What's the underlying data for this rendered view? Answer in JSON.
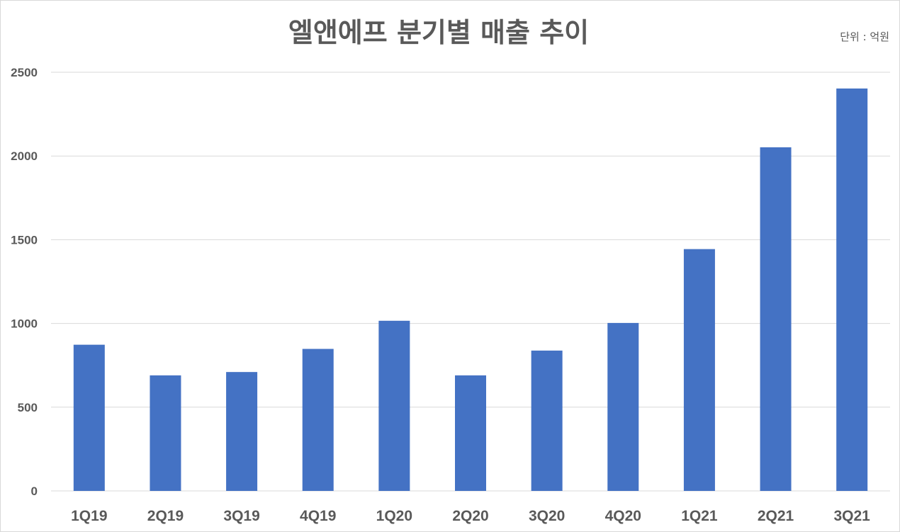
{
  "chart_data": {
    "type": "bar",
    "title": "엘앤에프 분기별 매출 추이",
    "unit_note": "단위 : 억원",
    "categories": [
      "1Q19",
      "2Q19",
      "3Q19",
      "4Q19",
      "1Q20",
      "2Q20",
      "3Q20",
      "4Q20",
      "1Q21",
      "2Q21",
      "3Q21"
    ],
    "values": [
      873,
      690,
      710,
      848,
      1016,
      690,
      838,
      1003,
      1444,
      2052,
      2403
    ],
    "ylim": [
      0,
      2500
    ],
    "yticks": [
      "0",
      "500",
      "1000",
      "1500",
      "2000",
      "2500"
    ],
    "grid": true,
    "legend": "none",
    "colors": {
      "bar": "#4472C4",
      "grid": "#d9d9d9",
      "text": "#595959"
    }
  }
}
